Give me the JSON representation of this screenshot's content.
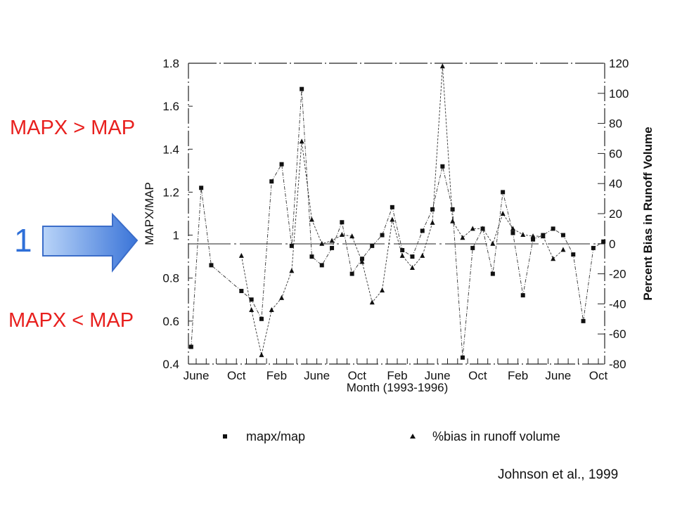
{
  "annotations": {
    "above": "MAPX > MAP",
    "below": "MAPX < MAP",
    "one": "1",
    "citation": "Johnson et al., 1999"
  },
  "colors": {
    "annotation_red": "#e8201e",
    "annotation_blue": "#2e6fd8",
    "arrow_light": "#b9d4f8",
    "arrow_dark": "#3a74d8",
    "arrow_border": "#3b6dc9",
    "ink": "#111111"
  },
  "chart_data": {
    "type": "line",
    "xlabel": "Month (1993-1996)",
    "ylabel_left": "MAPX/MAP",
    "ylabel_right": "Percent Bias in Runoff Volume",
    "ylim_left": [
      0.4,
      1.8
    ],
    "ylim_right": [
      -80,
      120
    ],
    "left_ticks": [
      "0.4",
      "0.6",
      "0.8",
      "1",
      "1.2",
      "1.4",
      "1.6",
      "1.8"
    ],
    "right_ticks": [
      "-80",
      "-60",
      "-40",
      "-20",
      "0",
      "20",
      "40",
      "60",
      "80",
      "100",
      "120"
    ],
    "x_ticks": [
      {
        "label": "June",
        "month": 0
      },
      {
        "label": "Oct",
        "month": 4
      },
      {
        "label": "Feb",
        "month": 8
      },
      {
        "label": "June",
        "month": 12
      },
      {
        "label": "Oct",
        "month": 16
      },
      {
        "label": "Feb",
        "month": 20
      },
      {
        "label": "June",
        "month": 24
      },
      {
        "label": "Oct",
        "month": 28
      },
      {
        "label": "Feb",
        "month": 32
      },
      {
        "label": "June",
        "month": 36
      },
      {
        "label": "Oct",
        "month": 40
      }
    ],
    "legend_position": "bottom",
    "series": [
      {
        "name": "mapx/map",
        "marker": "square",
        "points": [
          [
            -0.5,
            0.48
          ],
          [
            0.5,
            1.22
          ],
          [
            1.5,
            0.86
          ],
          [
            4.5,
            0.74
          ],
          [
            5.5,
            0.7
          ],
          [
            6.5,
            0.61
          ],
          [
            7.5,
            1.25
          ],
          [
            8.5,
            1.33
          ],
          [
            9.5,
            0.95
          ],
          [
            10.5,
            1.68
          ],
          [
            11.5,
            0.9
          ],
          [
            12.5,
            0.86
          ],
          [
            13.5,
            0.94
          ],
          [
            14.5,
            1.06
          ],
          [
            15.5,
            0.82
          ],
          [
            16.5,
            0.89
          ],
          [
            17.5,
            0.95
          ],
          [
            18.5,
            1.0
          ],
          [
            19.5,
            1.13
          ],
          [
            20.5,
            0.93
          ],
          [
            21.5,
            0.9
          ],
          [
            22.5,
            1.02
          ],
          [
            23.5,
            1.12
          ],
          [
            24.5,
            1.32
          ],
          [
            25.5,
            1.12
          ],
          [
            26.5,
            0.43
          ],
          [
            27.5,
            0.94
          ],
          [
            28.5,
            1.03
          ],
          [
            29.5,
            0.82
          ],
          [
            30.5,
            1.2
          ],
          [
            31.5,
            1.01
          ],
          [
            32.5,
            0.72
          ],
          [
            33.5,
            0.98
          ],
          [
            34.5,
            1.0
          ],
          [
            35.5,
            1.03
          ],
          [
            36.5,
            1.0
          ],
          [
            37.5,
            0.91
          ],
          [
            38.5,
            0.6
          ],
          [
            39.5,
            0.94
          ],
          [
            40.5,
            0.97
          ]
        ]
      },
      {
        "name": "%bias in runoff volume",
        "marker": "triangle",
        "points": [
          [
            4.5,
            -8
          ],
          [
            5.5,
            -44
          ],
          [
            6.5,
            -74
          ],
          [
            7.5,
            -44
          ],
          [
            8.5,
            -36
          ],
          [
            9.5,
            -18
          ],
          [
            10.5,
            68
          ],
          [
            11.5,
            16
          ],
          [
            12.5,
            0
          ],
          [
            13.5,
            2
          ],
          [
            14.5,
            6
          ],
          [
            15.5,
            5
          ],
          [
            16.5,
            -12
          ],
          [
            17.5,
            -39
          ],
          [
            18.5,
            -31
          ],
          [
            19.5,
            16
          ],
          [
            20.5,
            -8
          ],
          [
            21.5,
            -16
          ],
          [
            22.5,
            -8
          ],
          [
            23.5,
            14
          ],
          [
            24.5,
            118
          ],
          [
            25.5,
            15
          ],
          [
            26.5,
            4
          ],
          [
            27.5,
            10
          ],
          [
            28.5,
            10
          ],
          [
            29.5,
            0
          ],
          [
            30.5,
            20
          ],
          [
            31.5,
            10
          ],
          [
            32.5,
            6
          ],
          [
            33.5,
            5
          ],
          [
            34.5,
            5
          ],
          [
            35.5,
            -10
          ],
          [
            36.5,
            -4
          ]
        ]
      }
    ]
  }
}
